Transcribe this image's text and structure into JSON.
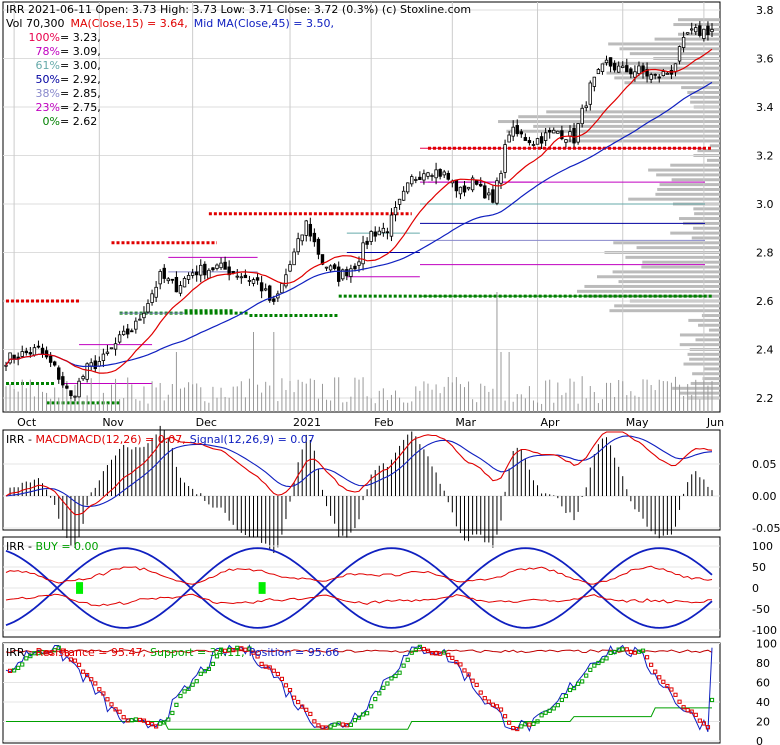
{
  "header": {
    "line1": "IRR  2021-06-11 Open: 3.73  High: 3.73  Low: 3.71  Close: 3.72 (0.3%)  (c) Stoxline.com",
    "vol_label": "Vol 70,300",
    "ma15_label": "MA(Close,15) = 3.64,",
    "ma45_label": "Mid MA(Close,45) = 3.50,"
  },
  "fib_levels": [
    {
      "pct": "100%",
      "text": " = 3.23,",
      "value": 3.23,
      "color": "#e8004c"
    },
    {
      "pct": "78%",
      "text": " = 3.09,",
      "value": 3.09,
      "color": "#c000c0"
    },
    {
      "pct": "61%",
      "text": " = 3.00,",
      "value": 3.0,
      "color": "#66aaaa"
    },
    {
      "pct": "50%",
      "text": " = 2.92,",
      "value": 2.92,
      "color": "#0000a0"
    },
    {
      "pct": "38%",
      "text": " = 2.85,",
      "value": 2.85,
      "color": "#8888cc"
    },
    {
      "pct": "23%",
      "text": " = 2.75,",
      "value": 2.75,
      "color": "#c000c0"
    },
    {
      "pct": "0%",
      "text": " = 2.62",
      "value": 2.62,
      "color": "#008000"
    }
  ],
  "macd_panel": {
    "prefix": "IRR - ",
    "macd_label": "MACDMACD(12,26) = 0.07,",
    "signal_label": "Signal(12,26,9) = 0.07",
    "ticks": [
      "0.05",
      "0.00",
      "-0.05"
    ],
    "tick_values": [
      0.05,
      0.0,
      -0.05
    ]
  },
  "buy_panel": {
    "prefix": "IRR - ",
    "buy_label": "BUY = 0.00",
    "ticks": [
      "100",
      "50",
      "0",
      "-50",
      "-100"
    ]
  },
  "stoch_panel": {
    "prefix": "IRR - ",
    "resistance_label": "Resistance = 95.47,",
    "support_label": "Support = 34.11,",
    "position_label": "Position = 95.66",
    "ticks": [
      "100",
      "80",
      "60",
      "40",
      "20",
      "0"
    ]
  },
  "colors": {
    "ma15": "#e00000",
    "ma45": "#1020c0",
    "volume_profile": "#bbbbbb",
    "buy_marker": "#00ee00",
    "stoch_up": "#00a000",
    "stoch_down": "#e00000"
  },
  "chart_data": {
    "type": "candlestick",
    "y_ticks": [
      2.2,
      2.4,
      2.6,
      2.8,
      3.0,
      3.2,
      3.4,
      3.6,
      3.8
    ],
    "ylim": [
      2.18,
      3.82
    ],
    "x_labels": [
      "Oct",
      "Nov",
      "Dec",
      "2021",
      "Feb",
      "Mar",
      "Apr",
      "May",
      "Jun"
    ],
    "x_label_bar_index": [
      2,
      23,
      46,
      70,
      90,
      110,
      131,
      152,
      172
    ],
    "num_bars": 175,
    "anchors": [
      [
        0,
        2.36
      ],
      [
        8,
        2.4
      ],
      [
        12,
        2.32
      ],
      [
        16,
        2.2
      ],
      [
        20,
        2.32
      ],
      [
        24,
        2.36
      ],
      [
        28,
        2.44
      ],
      [
        32,
        2.5
      ],
      [
        38,
        2.7
      ],
      [
        42,
        2.66
      ],
      [
        46,
        2.72
      ],
      [
        52,
        2.74
      ],
      [
        56,
        2.72
      ],
      [
        62,
        2.68
      ],
      [
        66,
        2.58
      ],
      [
        70,
        2.75
      ],
      [
        74,
        2.92
      ],
      [
        78,
        2.76
      ],
      [
        82,
        2.7
      ],
      [
        86,
        2.75
      ],
      [
        90,
        2.88
      ],
      [
        94,
        2.9
      ],
      [
        100,
        3.1
      ],
      [
        104,
        3.15
      ],
      [
        108,
        3.12
      ],
      [
        112,
        3.05
      ],
      [
        116,
        3.1
      ],
      [
        120,
        3.0
      ],
      [
        124,
        3.3
      ],
      [
        130,
        3.26
      ],
      [
        136,
        3.3
      ],
      [
        140,
        3.27
      ],
      [
        144,
        3.48
      ],
      [
        148,
        3.58
      ],
      [
        152,
        3.55
      ],
      [
        156,
        3.55
      ],
      [
        160,
        3.52
      ],
      [
        164,
        3.55
      ],
      [
        168,
        3.7
      ],
      [
        174,
        3.72
      ]
    ],
    "ma15_end": 3.64,
    "ma45_end": 3.5,
    "series": [
      {
        "name": "MA(Close,15)",
        "value": 3.64
      },
      {
        "name": "Mid MA(Close,45)",
        "value": 3.5
      }
    ]
  }
}
